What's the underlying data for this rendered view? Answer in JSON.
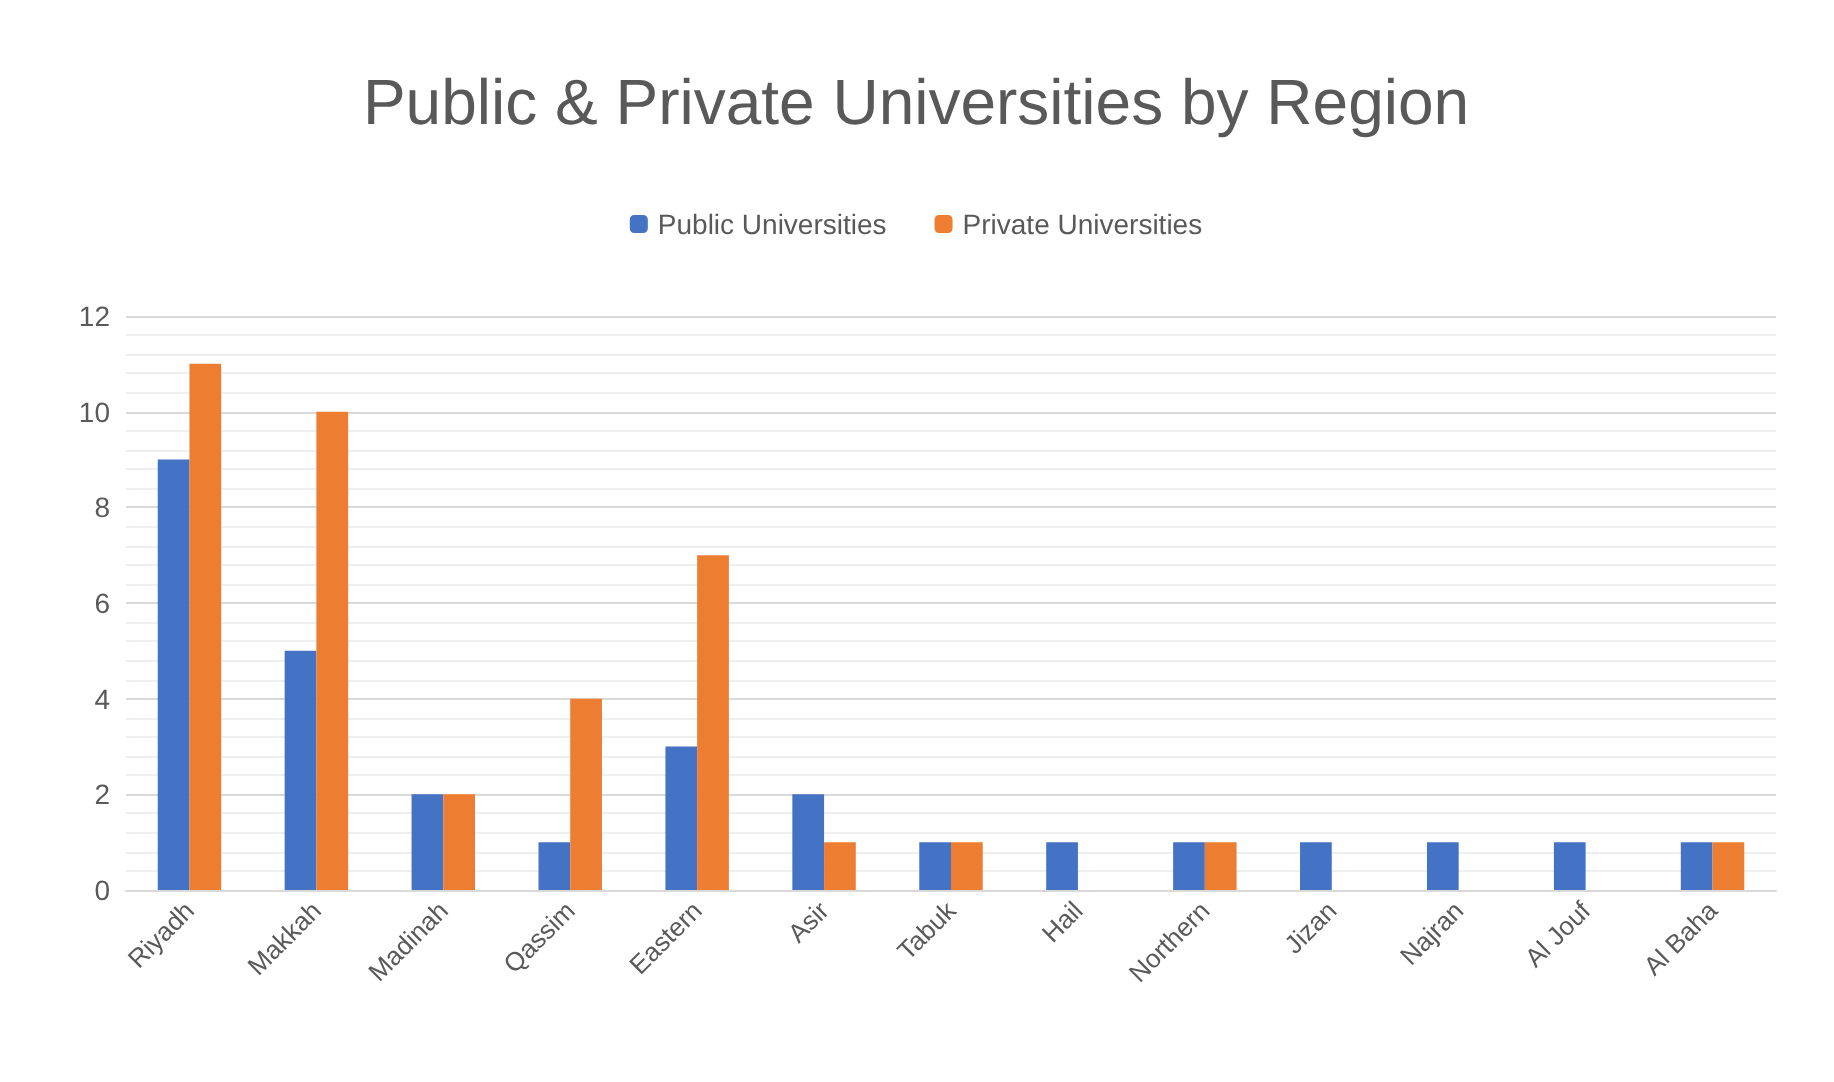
{
  "chart_data": {
    "type": "bar",
    "title": "Public & Private Universities by Region",
    "categories": [
      "Riyadh",
      "Makkah",
      "Madinah",
      "Qassim",
      "Eastern",
      "Asir",
      "Tabuk",
      "Hail",
      "Northern",
      "Jizan",
      "Najran",
      "Al Jouf",
      "Al Baha"
    ],
    "series": [
      {
        "name": "Public Universities",
        "color": "#4472c4",
        "values": [
          9,
          5,
          2,
          1,
          3,
          2,
          1,
          1,
          1,
          1,
          1,
          1,
          1
        ]
      },
      {
        "name": "Private Universities",
        "color": "#ed7d31",
        "values": [
          11,
          10,
          2,
          4,
          7,
          1,
          1,
          0,
          1,
          0,
          0,
          0,
          1
        ]
      }
    ],
    "ylim": [
      0,
      12
    ],
    "yticks": [
      0,
      2,
      4,
      6,
      8,
      10,
      12
    ],
    "grid": "y",
    "legend": "top"
  }
}
